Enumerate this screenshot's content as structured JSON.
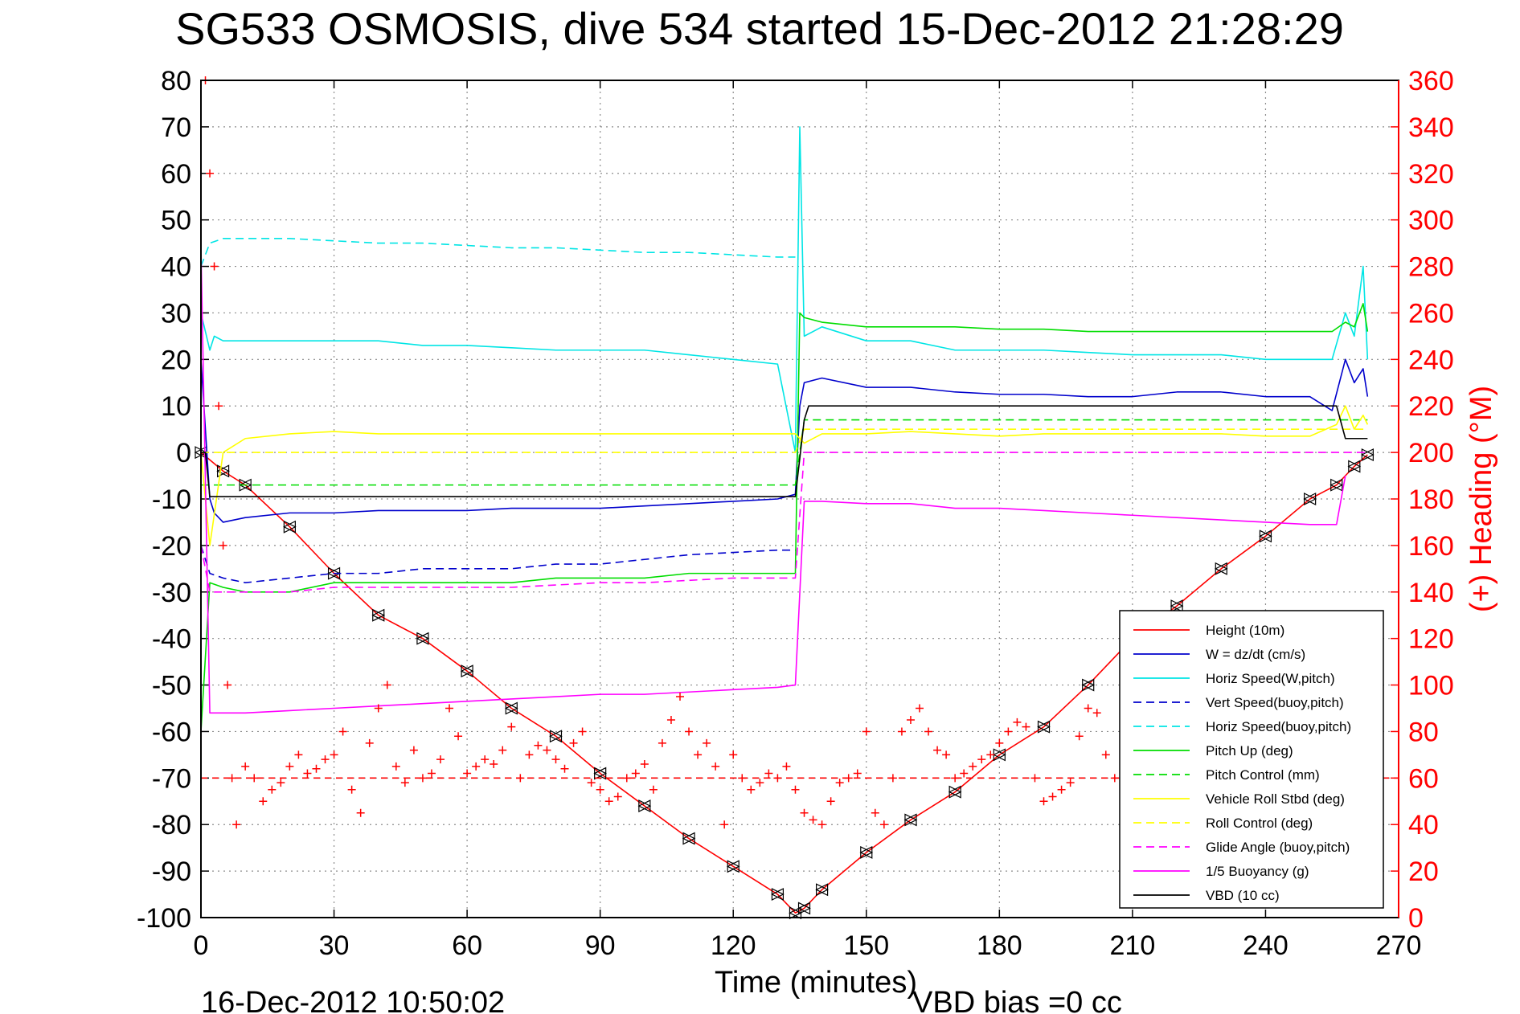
{
  "chart_data": {
    "type": "line",
    "title": "SG533 OSMOSIS, dive 534 started 15-Dec-2012 21:28:29",
    "xlabel": "Time (minutes)",
    "ylabel": "",
    "y2label": "(+) Heading (°M)",
    "footer_left": "16-Dec-2012 10:50:02",
    "footer_right": "VBD bias =0 cc",
    "xlim": [
      0,
      270
    ],
    "ylim": [
      -100,
      80
    ],
    "y2lim": [
      0,
      360
    ],
    "x_ticks": [
      0,
      30,
      60,
      90,
      120,
      150,
      180,
      210,
      240,
      270
    ],
    "y_ticks": [
      80,
      70,
      60,
      50,
      40,
      30,
      20,
      10,
      0,
      -10,
      -20,
      -30,
      -40,
      -50,
      -60,
      -70,
      -80,
      -90,
      -100
    ],
    "y2_ticks": [
      360,
      340,
      320,
      300,
      280,
      260,
      240,
      220,
      200,
      180,
      160,
      140,
      120,
      100,
      80,
      60,
      40,
      20,
      0
    ],
    "grid": true,
    "legend_position": "bottom-right",
    "colors": {
      "red": "#ff0000",
      "blue": "#0000cc",
      "cyan": "#00e5e5",
      "green": "#00dd00",
      "yellow": "#ffff00",
      "magenta": "#ff00ff",
      "black": "#000000",
      "grid": "#8c8c8c"
    },
    "series": [
      {
        "name": "Height (10m)",
        "color": "#ff0000",
        "dash": "solid",
        "markers": "triangles",
        "x": [
          0,
          5,
          10,
          20,
          30,
          40,
          50,
          60,
          70,
          80,
          90,
          100,
          110,
          120,
          130,
          134,
          136,
          140,
          150,
          160,
          170,
          180,
          190,
          200,
          210,
          220,
          230,
          240,
          250,
          256,
          260,
          263
        ],
        "y": [
          0,
          -4,
          -7,
          -16,
          -26,
          -35,
          -40,
          -47,
          -55,
          -61,
          -69,
          -76,
          -83,
          -89,
          -95,
          -99,
          -98,
          -94,
          -86,
          -79,
          -73,
          -65,
          -59,
          -50,
          -40,
          -33,
          -25,
          -18,
          -10,
          -7,
          -3,
          -0.5
        ]
      },
      {
        "name": "W = dz/dt (cm/s)",
        "color": "#0000cc",
        "dash": "solid",
        "x": [
          0,
          2,
          3,
          5,
          10,
          20,
          30,
          40,
          50,
          60,
          70,
          80,
          90,
          100,
          110,
          120,
          130,
          134,
          135,
          136,
          140,
          150,
          160,
          170,
          180,
          190,
          200,
          210,
          220,
          230,
          240,
          250,
          255,
          258,
          260,
          262,
          263
        ],
        "y": [
          20,
          -10,
          -13,
          -15,
          -14,
          -13,
          -13,
          -12.5,
          -12.5,
          -12.5,
          -12,
          -12,
          -12,
          -11.5,
          -11,
          -10.5,
          -10,
          -9,
          10,
          15,
          16,
          14,
          14,
          13,
          12.5,
          12.5,
          12,
          12,
          13,
          13,
          12,
          12,
          9,
          20,
          15,
          18,
          12
        ]
      },
      {
        "name": "Horiz Speed(W,pitch)",
        "color": "#00e5e5",
        "dash": "solid",
        "x": [
          0,
          2,
          3,
          5,
          10,
          20,
          30,
          40,
          50,
          60,
          70,
          80,
          90,
          100,
          110,
          120,
          130,
          134,
          135,
          136,
          140,
          150,
          160,
          170,
          180,
          190,
          200,
          210,
          220,
          230,
          240,
          250,
          255,
          258,
          260,
          262,
          263
        ],
        "y": [
          30,
          22,
          25,
          24,
          24,
          24,
          24,
          24,
          23,
          23,
          22.5,
          22,
          22,
          22,
          21,
          20,
          19,
          0,
          70,
          25,
          27,
          24,
          24,
          22,
          22,
          22,
          21.5,
          21,
          21,
          21,
          20,
          20,
          20,
          30,
          25,
          40,
          20
        ]
      },
      {
        "name": "Vert Speed(buoy,pitch)",
        "color": "#0000cc",
        "dash": "dashed",
        "x": [
          0,
          2,
          5,
          10,
          20,
          30,
          40,
          50,
          60,
          70,
          80,
          90,
          100,
          110,
          120,
          130,
          134
        ],
        "y": [
          -20,
          -26,
          -27,
          -28,
          -27,
          -26,
          -26,
          -25,
          -25,
          -25,
          -24,
          -24,
          -23,
          -22,
          -21.5,
          -21,
          -21
        ]
      },
      {
        "name": "Horiz Speed(buoy,pitch)",
        "color": "#00e5e5",
        "dash": "dashed",
        "x": [
          0,
          2,
          5,
          10,
          20,
          30,
          40,
          50,
          60,
          70,
          80,
          90,
          100,
          110,
          120,
          130,
          134
        ],
        "y": [
          40,
          45,
          46,
          46,
          46,
          45.5,
          45,
          45,
          44.5,
          44,
          44,
          43.5,
          43,
          43,
          42.5,
          42,
          42
        ]
      },
      {
        "name": "Pitch Up (deg)",
        "color": "#00dd00",
        "dash": "solid",
        "x": [
          0,
          2,
          5,
          10,
          20,
          30,
          40,
          50,
          60,
          70,
          80,
          90,
          100,
          110,
          120,
          130,
          134,
          135,
          136,
          140,
          150,
          160,
          170,
          180,
          190,
          200,
          210,
          220,
          230,
          240,
          250,
          255,
          258,
          260,
          262,
          263
        ],
        "y": [
          -60,
          -28,
          -29,
          -30,
          -30,
          -28,
          -28,
          -28,
          -28,
          -28,
          -27,
          -27,
          -27,
          -26,
          -26,
          -26,
          -26,
          30,
          29,
          28,
          27,
          27,
          27,
          26.5,
          26.5,
          26,
          26,
          26,
          26,
          26,
          26,
          26,
          28,
          27,
          32,
          26
        ]
      },
      {
        "name": "Pitch Control (mm)",
        "color": "#00dd00",
        "dash": "dashed",
        "x": [
          0,
          3,
          134,
          136,
          263
        ],
        "y": [
          -7,
          -7,
          -7,
          7,
          7
        ]
      },
      {
        "name": "Vehicle Roll Stbd (deg)",
        "color": "#ffff00",
        "dash": "solid",
        "x": [
          0,
          2,
          5,
          10,
          20,
          30,
          40,
          50,
          60,
          70,
          80,
          90,
          100,
          110,
          120,
          130,
          134,
          136,
          140,
          150,
          160,
          170,
          180,
          190,
          200,
          210,
          220,
          230,
          240,
          250,
          256,
          258,
          260,
          262,
          263
        ],
        "y": [
          0,
          -20,
          0,
          3,
          4,
          4.5,
          4,
          4,
          4,
          4,
          4,
          4,
          4,
          4,
          4,
          4,
          4,
          2,
          4,
          4,
          4.5,
          4,
          3.5,
          4,
          4,
          4,
          4,
          4,
          3.5,
          3.5,
          6,
          10,
          5,
          8,
          6
        ]
      },
      {
        "name": "Roll Control (deg)",
        "color": "#ffff00",
        "dash": "dashed",
        "x": [
          0,
          3,
          134,
          136,
          263
        ],
        "y": [
          0,
          0,
          0,
          5,
          5
        ]
      },
      {
        "name": "Glide Angle (buoy,pitch)",
        "color": "#ff00ff",
        "dash": "dashed",
        "x": [
          0,
          2,
          5,
          10,
          20,
          30,
          40,
          50,
          60,
          70,
          80,
          90,
          100,
          110,
          120,
          130,
          134,
          136,
          263
        ],
        "y": [
          -20,
          -30,
          -30,
          -30,
          -30,
          -29,
          -29,
          -29,
          -29,
          -29,
          -28.5,
          -28,
          -28,
          -27.5,
          -27,
          -27,
          -27,
          0,
          0
        ]
      },
      {
        "name": "1/5 Buoyancy (g)",
        "color": "#ff00ff",
        "dash": "solid",
        "x": [
          0,
          2,
          5,
          10,
          20,
          30,
          40,
          50,
          60,
          70,
          80,
          90,
          100,
          110,
          120,
          130,
          134,
          136,
          140,
          150,
          160,
          170,
          180,
          190,
          200,
          210,
          220,
          230,
          240,
          250,
          256,
          258
        ],
        "y": [
          44,
          -56,
          -56,
          -56,
          -55.5,
          -55,
          -54.5,
          -54,
          -53.5,
          -53,
          -52.5,
          -52,
          -52,
          -51.5,
          -51,
          -50.5,
          -50,
          -10.5,
          -10.5,
          -11,
          -11,
          -12,
          -12,
          -12.5,
          -13,
          -13.5,
          -14,
          -14.5,
          -15,
          -15.5,
          -15.5,
          -5
        ]
      },
      {
        "name": "VBD (10 cc)",
        "color": "#000000",
        "dash": "solid",
        "x": [
          0,
          1,
          2,
          134,
          136,
          137,
          256,
          258,
          263
        ],
        "y": [
          0,
          0,
          -9.5,
          -9.5,
          7,
          10,
          10,
          3,
          3
        ]
      }
    ],
    "heading": {
      "name": "Heading (+)",
      "color": "#ff0000",
      "marker": "plus",
      "reference_y2": 60,
      "x": [
        1,
        2,
        3,
        4,
        5,
        6,
        7,
        8,
        10,
        12,
        14,
        16,
        18,
        20,
        22,
        24,
        26,
        28,
        30,
        32,
        34,
        36,
        38,
        40,
        42,
        44,
        46,
        48,
        50,
        52,
        54,
        56,
        58,
        60,
        62,
        64,
        66,
        68,
        70,
        72,
        74,
        76,
        78,
        80,
        82,
        84,
        86,
        88,
        90,
        92,
        94,
        96,
        98,
        100,
        102,
        104,
        106,
        108,
        110,
        112,
        114,
        116,
        118,
        120,
        122,
        124,
        126,
        128,
        130,
        132,
        134,
        136,
        138,
        140,
        142,
        144,
        146,
        148,
        150,
        152,
        154,
        156,
        158,
        160,
        162,
        164,
        166,
        168,
        170,
        172,
        174,
        176,
        178,
        180,
        182,
        184,
        186,
        188,
        190,
        192,
        194,
        196,
        198,
        200,
        202,
        204,
        206,
        208,
        210
      ],
      "y2": [
        360,
        320,
        280,
        220,
        160,
        100,
        60,
        40,
        65,
        60,
        50,
        55,
        58,
        65,
        70,
        62,
        64,
        68,
        70,
        80,
        55,
        45,
        75,
        90,
        100,
        65,
        58,
        72,
        60,
        62,
        68,
        90,
        78,
        62,
        65,
        68,
        66,
        72,
        82,
        60,
        70,
        74,
        72,
        68,
        64,
        75,
        80,
        58,
        55,
        50,
        52,
        60,
        62,
        66,
        55,
        75,
        85,
        95,
        80,
        70,
        75,
        65,
        40,
        70,
        60,
        55,
        58,
        62,
        60,
        65,
        55,
        45,
        42,
        40,
        50,
        58,
        60,
        62,
        80,
        45,
        40,
        60,
        80,
        85,
        90,
        80,
        72,
        70,
        60,
        62,
        65,
        68,
        70,
        75,
        80,
        84,
        82,
        60,
        50,
        52,
        55,
        58,
        78,
        90,
        88,
        70,
        60,
        55,
        62
      ]
    }
  }
}
